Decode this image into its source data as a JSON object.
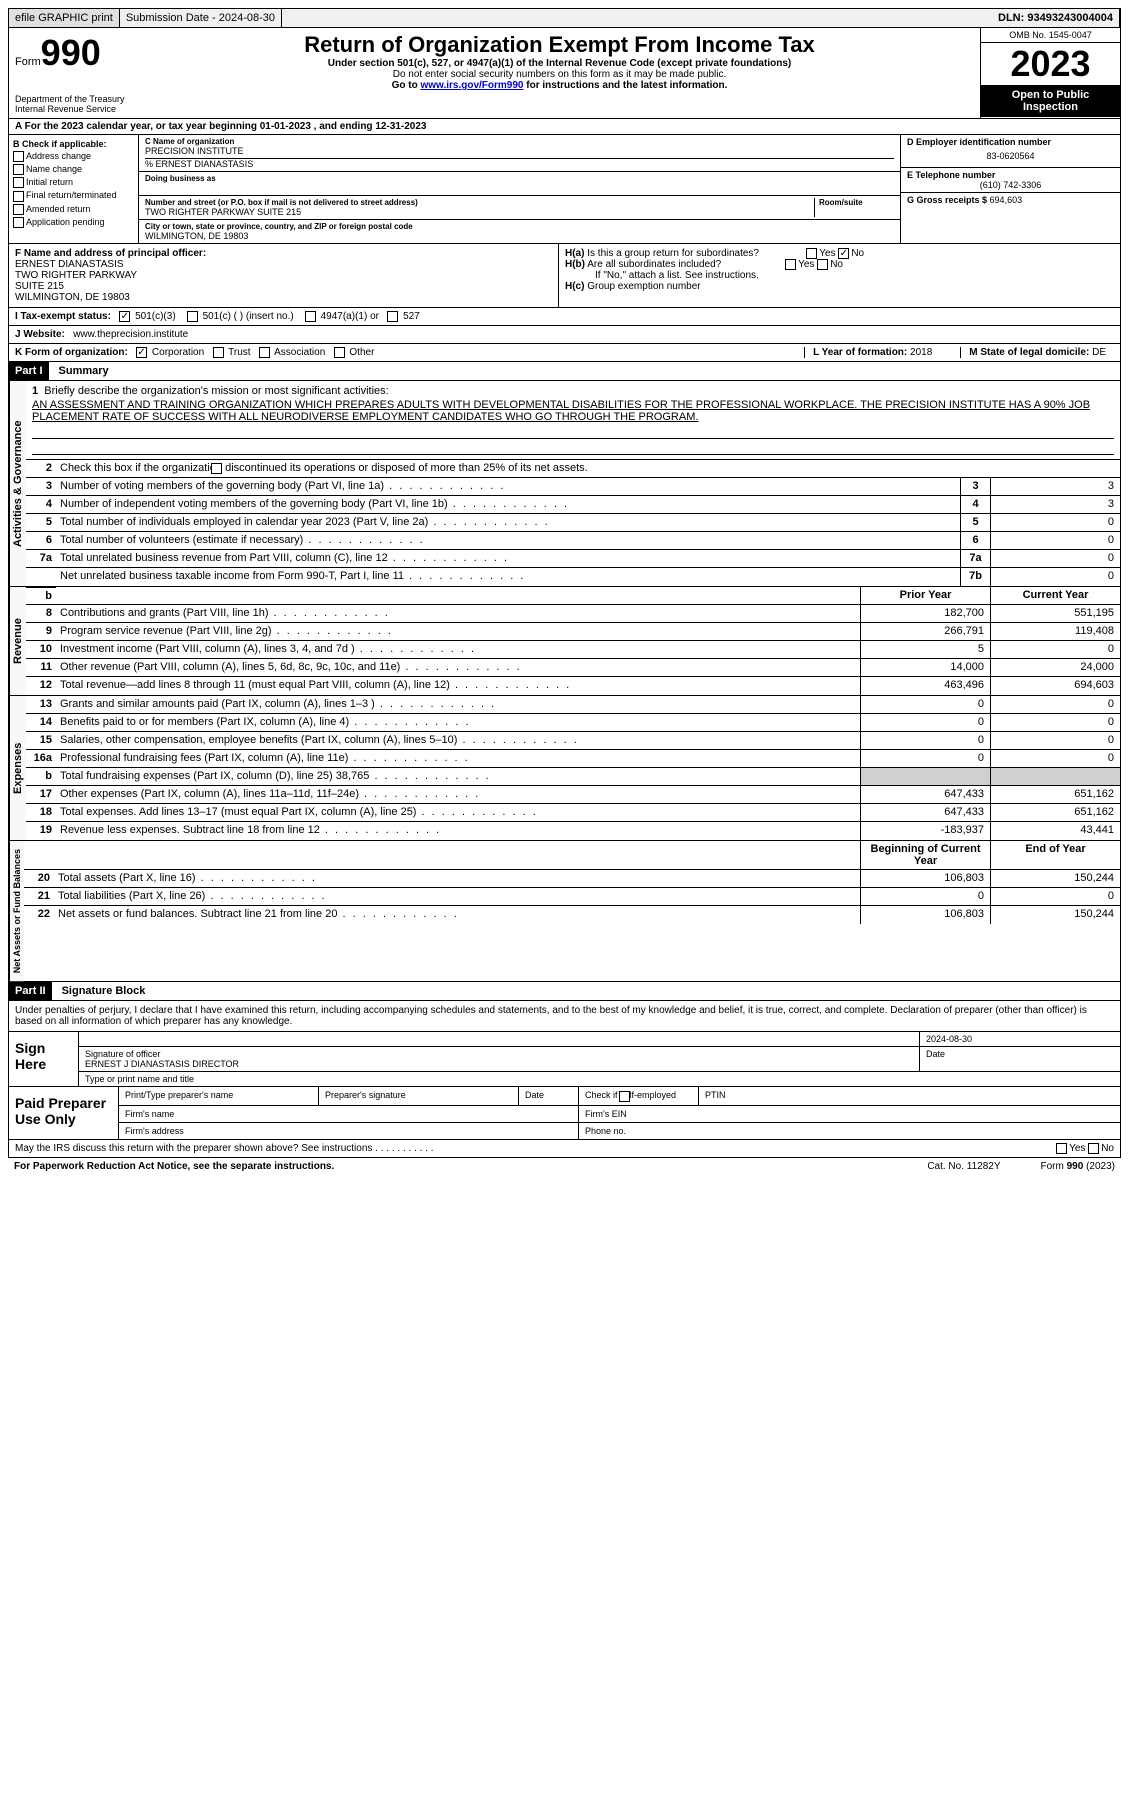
{
  "topbar": {
    "efile": "efile GRAPHIC print",
    "submission_label": "Submission Date - 2024-08-30",
    "dln": "DLN: 93493243004004"
  },
  "header": {
    "form_prefix": "Form",
    "form_number": "990",
    "title": "Return of Organization Exempt From Income Tax",
    "subtitle": "Under section 501(c), 527, or 4947(a)(1) of the Internal Revenue Code (except private foundations)",
    "note1": "Do not enter social security numbers on this form as it may be made public.",
    "note2": "Go to ",
    "link": "www.irs.gov/Form990",
    "note3": " for instructions and the latest information.",
    "omb": "OMB No. 1545-0047",
    "year": "2023",
    "public": "Open to Public Inspection",
    "dept": "Department of the Treasury\nInternal Revenue Service"
  },
  "line_a": "A For the 2023 calendar year, or tax year beginning 01-01-2023   , and ending 12-31-2023",
  "section_b": {
    "header": "B Check if applicable:",
    "items": [
      "Address change",
      "Name change",
      "Initial return",
      "Final return/terminated",
      "Amended return",
      "Application pending"
    ]
  },
  "section_c": {
    "name_label": "C Name of organization",
    "name": "PRECISION INSTITUTE",
    "care_of": "% ERNEST DIANASTASIS",
    "dba_label": "Doing business as",
    "dba": "",
    "addr_label": "Number and street (or P.O. box if mail is not delivered to street address)",
    "room_label": "Room/suite",
    "addr": "TWO RIGHTER PARKWAY SUITE 215",
    "city_label": "City or town, state or province, country, and ZIP or foreign postal code",
    "city": "WILMINGTON, DE  19803"
  },
  "section_d": {
    "ein_label": "D Employer identification number",
    "ein": "83-0620564",
    "phone_label": "E Telephone number",
    "phone": "(610) 742-3306",
    "gross_label": "G Gross receipts $ ",
    "gross": "694,603"
  },
  "section_f": {
    "label": "F Name and address of principal officer:",
    "name": "ERNEST DIANASTASIS",
    "addr1": "TWO RIGHTER PARKWAY",
    "addr2": "SUITE 215",
    "city": "WILMINGTON, DE  19803"
  },
  "section_h": {
    "ha_label": "H(a)  Is this a group return for subordinates?",
    "ha_no_checked": "No",
    "hb_label": "H(b)  Are all subordinates included?",
    "hb_note": "If \"No,\" attach a list. See instructions.",
    "hc_label": "H(c)  Group exemption number"
  },
  "section_i": {
    "label": "I  Tax-exempt status:",
    "opt1": "501(c)(3)",
    "opt2": "501(c) (  ) (insert no.)",
    "opt3": "4947(a)(1) or",
    "opt4": "527"
  },
  "section_j": {
    "label": "J  Website:",
    "value": "www.theprecision.institute"
  },
  "section_k": {
    "label": "K Form of organization:",
    "opts": [
      "Corporation",
      "Trust",
      "Association",
      "Other"
    ],
    "year_label": "L Year of formation: ",
    "year": "2018",
    "state_label": "M State of legal domicile: ",
    "state": "DE"
  },
  "part1": {
    "header": "Part I",
    "title": "Summary",
    "mission_label": "Briefly describe the organization's mission or most significant activities:",
    "mission": "AN ASSESSMENT AND TRAINING ORGANIZATION WHICH PREPARES ADULTS WITH DEVELOPMENTAL DISABILITIES FOR THE PROFESSIONAL WORKPLACE. THE PRECISION INSTITUTE HAS A 90% JOB PLACEMENT RATE OF SUCCESS WITH ALL NEURODIVERSE EMPLOYMENT CANDIDATES WHO GO THROUGH THE PROGRAM.",
    "line2": "Check this box     if the organization discontinued its operations or disposed of more than 25% of its net assets.",
    "prior_year": "Prior Year",
    "current_year": "Current Year",
    "boy": "Beginning of Current Year",
    "eoy": "End of Year"
  },
  "sections": {
    "governance": {
      "label": "Activities & Governance",
      "rows": [
        {
          "num": "3",
          "desc": "Number of voting members of the governing body (Part VI, line 1a)",
          "box": "3",
          "val": "3"
        },
        {
          "num": "4",
          "desc": "Number of independent voting members of the governing body (Part VI, line 1b)",
          "box": "4",
          "val": "3"
        },
        {
          "num": "5",
          "desc": "Total number of individuals employed in calendar year 2023 (Part V, line 2a)",
          "box": "5",
          "val": "0"
        },
        {
          "num": "6",
          "desc": "Total number of volunteers (estimate if necessary)",
          "box": "6",
          "val": "0"
        },
        {
          "num": "7a",
          "desc": "Total unrelated business revenue from Part VIII, column (C), line 12",
          "box": "7a",
          "val": "0"
        },
        {
          "num": "",
          "desc": "Net unrelated business taxable income from Form 990-T, Part I, line 11",
          "box": "7b",
          "val": "0"
        }
      ]
    },
    "revenue": {
      "label": "Revenue",
      "rows": [
        {
          "num": "8",
          "desc": "Contributions and grants (Part VIII, line 1h)",
          "prior": "182,700",
          "curr": "551,195"
        },
        {
          "num": "9",
          "desc": "Program service revenue (Part VIII, line 2g)",
          "prior": "266,791",
          "curr": "119,408"
        },
        {
          "num": "10",
          "desc": "Investment income (Part VIII, column (A), lines 3, 4, and 7d )",
          "prior": "5",
          "curr": "0"
        },
        {
          "num": "11",
          "desc": "Other revenue (Part VIII, column (A), lines 5, 6d, 8c, 9c, 10c, and 11e)",
          "prior": "14,000",
          "curr": "24,000"
        },
        {
          "num": "12",
          "desc": "Total revenue—add lines 8 through 11 (must equal Part VIII, column (A), line 12)",
          "prior": "463,496",
          "curr": "694,603"
        }
      ]
    },
    "expenses": {
      "label": "Expenses",
      "rows": [
        {
          "num": "13",
          "desc": "Grants and similar amounts paid (Part IX, column (A), lines 1–3 )",
          "prior": "0",
          "curr": "0"
        },
        {
          "num": "14",
          "desc": "Benefits paid to or for members (Part IX, column (A), line 4)",
          "prior": "0",
          "curr": "0"
        },
        {
          "num": "15",
          "desc": "Salaries, other compensation, employee benefits (Part IX, column (A), lines 5–10)",
          "prior": "0",
          "curr": "0"
        },
        {
          "num": "16a",
          "desc": "Professional fundraising fees (Part IX, column (A), line 11e)",
          "prior": "0",
          "curr": "0"
        },
        {
          "num": "b",
          "desc": "Total fundraising expenses (Part IX, column (D), line 25) 38,765",
          "prior": "",
          "curr": "",
          "shaded": true
        },
        {
          "num": "17",
          "desc": "Other expenses (Part IX, column (A), lines 11a–11d, 11f–24e)",
          "prior": "647,433",
          "curr": "651,162"
        },
        {
          "num": "18",
          "desc": "Total expenses. Add lines 13–17 (must equal Part IX, column (A), line 25)",
          "prior": "647,433",
          "curr": "651,162"
        },
        {
          "num": "19",
          "desc": "Revenue less expenses. Subtract line 18 from line 12",
          "prior": "-183,937",
          "curr": "43,441"
        }
      ]
    },
    "netassets": {
      "label": "Net Assets or Fund Balances",
      "rows": [
        {
          "num": "20",
          "desc": "Total assets (Part X, line 16)",
          "prior": "106,803",
          "curr": "150,244"
        },
        {
          "num": "21",
          "desc": "Total liabilities (Part X, line 26)",
          "prior": "0",
          "curr": "0"
        },
        {
          "num": "22",
          "desc": "Net assets or fund balances. Subtract line 21 from line 20",
          "prior": "106,803",
          "curr": "150,244"
        }
      ]
    }
  },
  "part2": {
    "header": "Part II",
    "title": "Signature Block",
    "declaration": "Under penalties of perjury, I declare that I have examined this return, including accompanying schedules and statements, and to the best of my knowledge and belief, it is true, correct, and complete. Declaration of preparer (other than officer) is based on all information of which preparer has any knowledge."
  },
  "sign": {
    "label": "Sign Here",
    "date": "2024-08-30",
    "sig_label": "Signature of officer",
    "officer": "ERNEST J DIANASTASIS DIRECTOR",
    "type_label": "Type or print name and title",
    "date_label": "Date"
  },
  "preparer": {
    "label": "Paid Preparer Use Only",
    "name_label": "Print/Type preparer's name",
    "sig_label": "Preparer's signature",
    "date_label": "Date",
    "check_label": "Check      if self-employed",
    "ptin_label": "PTIN",
    "firm_name_label": "Firm's name",
    "firm_ein_label": "Firm's EIN",
    "firm_addr_label": "Firm's address",
    "phone_label": "Phone no."
  },
  "discuss": "May the IRS discuss this return with the preparer shown above? See instructions .  .  .  .  .  .  .  .  .  .  .",
  "footer": {
    "paperwork": "For Paperwork Reduction Act Notice, see the separate instructions.",
    "cat": "Cat. No. 11282Y",
    "form": "Form 990 (2023)"
  }
}
